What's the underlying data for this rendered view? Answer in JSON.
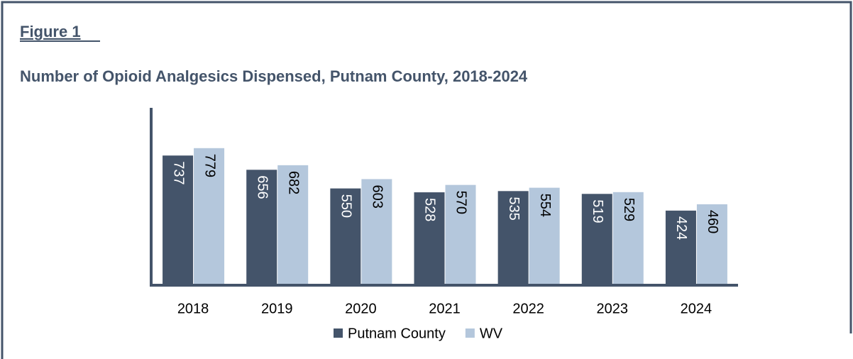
{
  "chart_data": {
    "type": "bar",
    "label": "Figure 1",
    "title": "Number of Opioid Analgesics Dispensed, Putnam County, 2018-2024",
    "categories": [
      "2018",
      "2019",
      "2020",
      "2021",
      "2022",
      "2023",
      "2024"
    ],
    "series": [
      {
        "name": "Putnam County",
        "color": "#44546a",
        "values": [
          737,
          656,
          550,
          528,
          535,
          519,
          424
        ]
      },
      {
        "name": "WV",
        "color": "#b4c7dc",
        "values": [
          779,
          682,
          603,
          570,
          554,
          529,
          460
        ]
      }
    ],
    "ylim": [
      0,
      1000
    ]
  }
}
